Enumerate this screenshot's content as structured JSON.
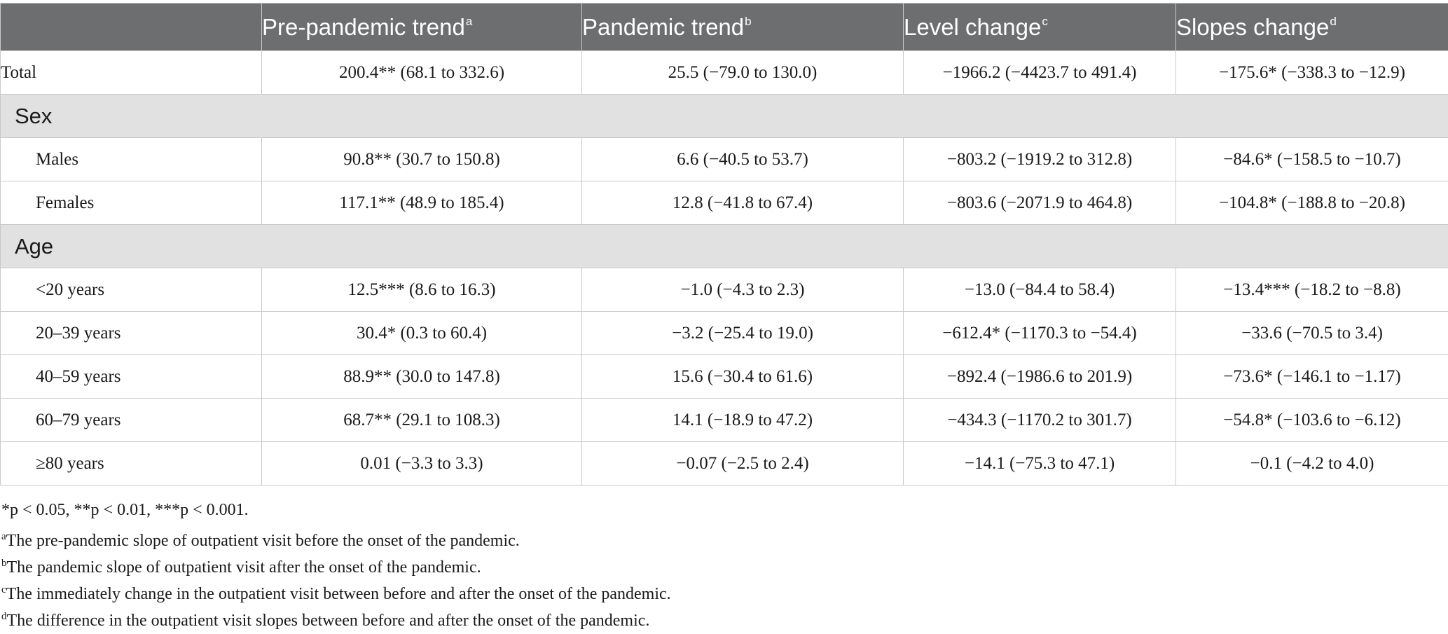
{
  "table": {
    "columns": [
      {
        "label": "",
        "sup": ""
      },
      {
        "label": "Pre-pandemic trend",
        "sup": "a"
      },
      {
        "label": "Pandemic trend",
        "sup": "b"
      },
      {
        "label": "Level change",
        "sup": "c"
      },
      {
        "label": "Slopes change",
        "sup": "d"
      }
    ],
    "rows": [
      {
        "type": "data",
        "indent": false,
        "cells": [
          "Total",
          "200.4** (68.1 to 332.6)",
          "25.5 (−79.0 to 130.0)",
          "−1966.2 (−4423.7 to 491.4)",
          "−175.6* (−338.3 to −12.9)"
        ]
      },
      {
        "type": "section",
        "label": "Sex"
      },
      {
        "type": "data",
        "indent": true,
        "cells": [
          "Males",
          "90.8** (30.7 to 150.8)",
          "6.6 (−40.5 to 53.7)",
          "−803.2 (−1919.2 to 312.8)",
          "−84.6* (−158.5 to −10.7)"
        ]
      },
      {
        "type": "data",
        "indent": true,
        "cells": [
          "Females",
          "117.1** (48.9 to 185.4)",
          "12.8 (−41.8 to 67.4)",
          "−803.6 (−2071.9 to 464.8)",
          "−104.8* (−188.8 to −20.8)"
        ]
      },
      {
        "type": "section",
        "label": "Age"
      },
      {
        "type": "data",
        "indent": true,
        "cells": [
          "<20 years",
          "12.5*** (8.6 to 16.3)",
          "−1.0 (−4.3 to 2.3)",
          "−13.0 (−84.4 to 58.4)",
          "−13.4*** (−18.2 to −8.8)"
        ]
      },
      {
        "type": "data",
        "indent": true,
        "cells": [
          "20–39 years",
          "30.4* (0.3 to 60.4)",
          "−3.2 (−25.4 to 19.0)",
          "−612.4* (−1170.3 to −54.4)",
          "−33.6 (−70.5 to 3.4)"
        ]
      },
      {
        "type": "data",
        "indent": true,
        "cells": [
          "40–59 years",
          "88.9** (30.0 to 147.8)",
          "15.6 (−30.4 to 61.6)",
          "−892.4 (−1986.6 to 201.9)",
          "−73.6* (−146.1 to −1.17)"
        ]
      },
      {
        "type": "data",
        "indent": true,
        "cells": [
          "60–79 years",
          "68.7** (29.1 to 108.3)",
          "14.1 (−18.9 to 47.2)",
          "−434.3 (−1170.2 to 301.7)",
          "−54.8* (−103.6 to −6.12)"
        ]
      },
      {
        "type": "data",
        "indent": true,
        "cells": [
          "≥80 years",
          "0.01 (−3.3 to 3.3)",
          "−0.07 (−2.5 to 2.4)",
          "−14.1 (−75.3 to 47.1)",
          "−0.1 (−4.2 to 4.0)"
        ]
      }
    ]
  },
  "footnotes": [
    {
      "sup": "",
      "text": "*p < 0.05, **p < 0.01, ***p < 0.001."
    },
    {
      "sup": "a",
      "text": "The pre-pandemic slope of outpatient visit before the onset of the pandemic."
    },
    {
      "sup": "b",
      "text": "The pandemic slope of outpatient visit after the onset of the pandemic."
    },
    {
      "sup": "c",
      "text": "The immediately change in the outpatient visit between before and after the onset of the pandemic."
    },
    {
      "sup": "d",
      "text": "The difference in the outpatient visit slopes between before and after the onset of the pandemic."
    }
  ],
  "colors": {
    "header_bg": "#6d6e70",
    "section_bg": "#e1e1e2",
    "border": "#c9c9c9"
  }
}
